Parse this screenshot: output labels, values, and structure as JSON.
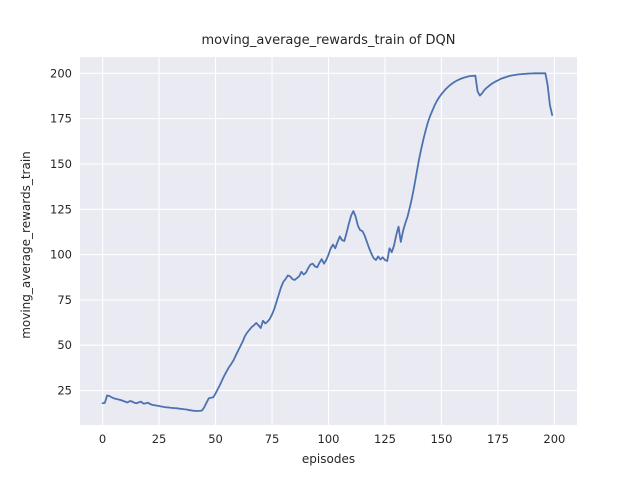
{
  "chart_data": {
    "type": "line",
    "title": "moving_average_rewards_train of DQN",
    "xlabel": "episodes",
    "ylabel": "moving_average_rewards_train",
    "xlim": [
      -10,
      210
    ],
    "ylim": [
      6,
      209
    ],
    "xticks": [
      0,
      25,
      50,
      75,
      100,
      125,
      150,
      175,
      200
    ],
    "yticks": [
      25,
      50,
      75,
      100,
      125,
      150,
      175,
      200
    ],
    "grid": true,
    "legend_position": "none",
    "colors": {
      "line": "#4c72b0",
      "axes_background": "#eaeaf2",
      "gridline": "#ffffff",
      "figure_background": "#ffffff",
      "text": "#262626"
    },
    "series": [
      {
        "name": "moving_average_rewards_train",
        "x": [
          0,
          1,
          2,
          3,
          4,
          5,
          6,
          7,
          8,
          9,
          10,
          11,
          12,
          13,
          14,
          15,
          16,
          17,
          18,
          19,
          20,
          21,
          22,
          23,
          24,
          25,
          26,
          27,
          28,
          29,
          30,
          31,
          32,
          33,
          34,
          35,
          36,
          37,
          38,
          39,
          40,
          41,
          42,
          43,
          44,
          45,
          46,
          47,
          48,
          49,
          50,
          51,
          52,
          53,
          54,
          55,
          56,
          57,
          58,
          59,
          60,
          61,
          62,
          63,
          64,
          65,
          66,
          67,
          68,
          69,
          70,
          71,
          72,
          73,
          74,
          75,
          76,
          77,
          78,
          79,
          80,
          81,
          82,
          83,
          84,
          85,
          86,
          87,
          88,
          89,
          90,
          91,
          92,
          93,
          94,
          95,
          96,
          97,
          98,
          99,
          100,
          101,
          102,
          103,
          104,
          105,
          106,
          107,
          108,
          109,
          110,
          111,
          112,
          113,
          114,
          115,
          116,
          117,
          118,
          119,
          120,
          121,
          122,
          123,
          124,
          125,
          126,
          127,
          128,
          129,
          130,
          131,
          132,
          133,
          134,
          135,
          136,
          137,
          138,
          139,
          140,
          141,
          142,
          143,
          144,
          145,
          146,
          147,
          148,
          149,
          150,
          151,
          152,
          153,
          154,
          155,
          156,
          157,
          158,
          159,
          160,
          161,
          162,
          163,
          164,
          165,
          166,
          167,
          168,
          169,
          170,
          171,
          172,
          173,
          174,
          175,
          176,
          177,
          178,
          179,
          180,
          181,
          182,
          183,
          184,
          185,
          186,
          187,
          188,
          189,
          190,
          191,
          192,
          193,
          194,
          195,
          196,
          197,
          198,
          199
        ],
        "y": [
          18.0,
          18.2,
          22.3,
          22.0,
          21.3,
          20.7,
          20.4,
          20.1,
          19.8,
          19.3,
          18.9,
          18.4,
          19.2,
          19.0,
          18.3,
          18.0,
          18.5,
          18.9,
          17.8,
          17.9,
          18.3,
          17.6,
          17.1,
          16.9,
          16.7,
          16.5,
          16.2,
          16.0,
          15.8,
          15.7,
          15.5,
          15.4,
          15.3,
          15.2,
          15.0,
          14.9,
          14.7,
          14.6,
          14.3,
          14.1,
          13.9,
          13.8,
          13.7,
          13.8,
          14.0,
          15.8,
          18.3,
          20.7,
          21.0,
          21.3,
          23.4,
          25.8,
          28.2,
          31.0,
          33.5,
          35.8,
          38.0,
          39.8,
          41.8,
          44.5,
          47.0,
          49.5,
          52.0,
          55.0,
          57.0,
          58.5,
          60.0,
          61.0,
          62.3,
          61.0,
          59.5,
          63.5,
          62.0,
          63.0,
          64.5,
          67.0,
          70.0,
          74.0,
          78.0,
          82.0,
          85.0,
          86.5,
          88.5,
          88.0,
          86.5,
          86.0,
          87.0,
          88.0,
          90.5,
          89.0,
          90.0,
          92.5,
          94.5,
          95.0,
          93.5,
          93.0,
          95.5,
          97.5,
          95.0,
          97.0,
          100.0,
          103.5,
          105.5,
          103.5,
          107.0,
          110.0,
          108.0,
          107.5,
          112.0,
          117.0,
          121.5,
          124.0,
          121.0,
          116.0,
          113.5,
          113.0,
          110.5,
          107.0,
          103.5,
          100.5,
          98.0,
          97.0,
          99.0,
          97.3,
          98.5,
          97.0,
          96.5,
          103.5,
          101.3,
          105.0,
          110.8,
          115.4,
          107.0,
          113.0,
          117.3,
          121.0,
          126.0,
          131.5,
          138.0,
          145.0,
          152.0,
          158.0,
          163.5,
          168.5,
          173.0,
          176.5,
          179.5,
          182.4,
          184.8,
          186.8,
          188.5,
          190.0,
          191.4,
          192.6,
          193.7,
          194.6,
          195.4,
          196.1,
          196.7,
          197.2,
          197.6,
          198.0,
          198.3,
          198.5,
          198.6,
          198.7,
          190.0,
          187.7,
          189.0,
          190.8,
          192.0,
          193.0,
          194.0,
          194.8,
          195.5,
          196.1,
          196.8,
          197.3,
          197.7,
          198.1,
          198.5,
          198.8,
          199.0,
          199.2,
          199.4,
          199.5,
          199.6,
          199.7,
          199.8,
          199.9,
          199.9,
          200.0,
          200.0,
          200.0,
          200.0,
          200.0,
          200.0,
          193.5,
          182.5,
          177.0
        ]
      }
    ]
  }
}
